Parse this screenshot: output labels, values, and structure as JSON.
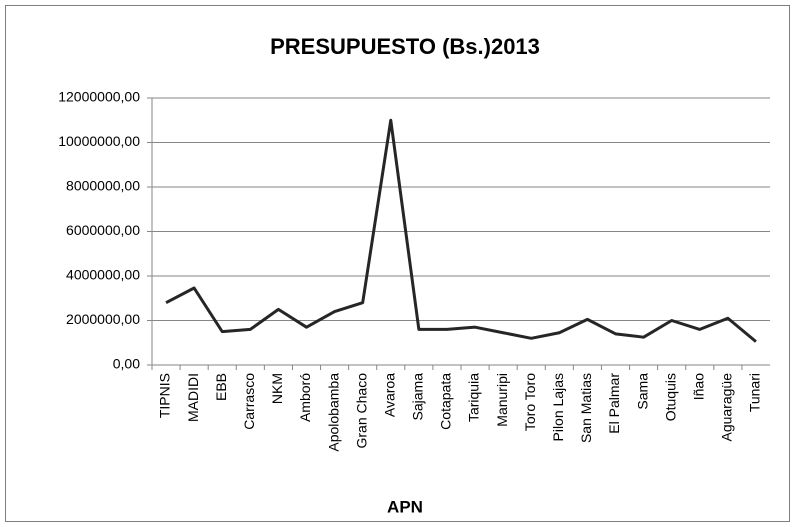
{
  "chart_data": {
    "type": "line",
    "title": "PRESUPUESTO  (Bs.)2013",
    "x_label": "APN",
    "categories": [
      "TIPNIS",
      "MADIDI",
      "EBB",
      "Carrasco",
      "NKM",
      "Amboró",
      "Apolobamba",
      "Gran Chaco",
      "Avaroa",
      "Sajama",
      "Cotapata",
      "Tariquia",
      "Manuripi",
      "Toro Toro",
      "Pilon Lajas",
      "San Matias",
      "El Palmar",
      "Sama",
      "Otuquis",
      "Iñao",
      "Aguaragüe",
      "Tunari"
    ],
    "values": [
      2800000,
      3460000,
      1500000,
      1600000,
      2500000,
      1700000,
      2400000,
      2800000,
      11000000,
      1600000,
      1600000,
      1700000,
      1450000,
      1200000,
      1450000,
      2050000,
      1400000,
      1250000,
      2000000,
      1600000,
      2100000,
      1050000
    ],
    "color": "#262626",
    "ylim": [
      0,
      12000000
    ],
    "yticks": [
      {
        "value": 0,
        "label": "0,00"
      },
      {
        "value": 2000000,
        "label": "2000000,00"
      },
      {
        "value": 4000000,
        "label": "4000000,00"
      },
      {
        "value": 6000000,
        "label": "6000000,00"
      },
      {
        "value": 8000000,
        "label": "8000000,00"
      },
      {
        "value": 10000000,
        "label": "10000000,00"
      },
      {
        "value": 12000000,
        "label": "12000000,00"
      }
    ],
    "grid": true
  }
}
